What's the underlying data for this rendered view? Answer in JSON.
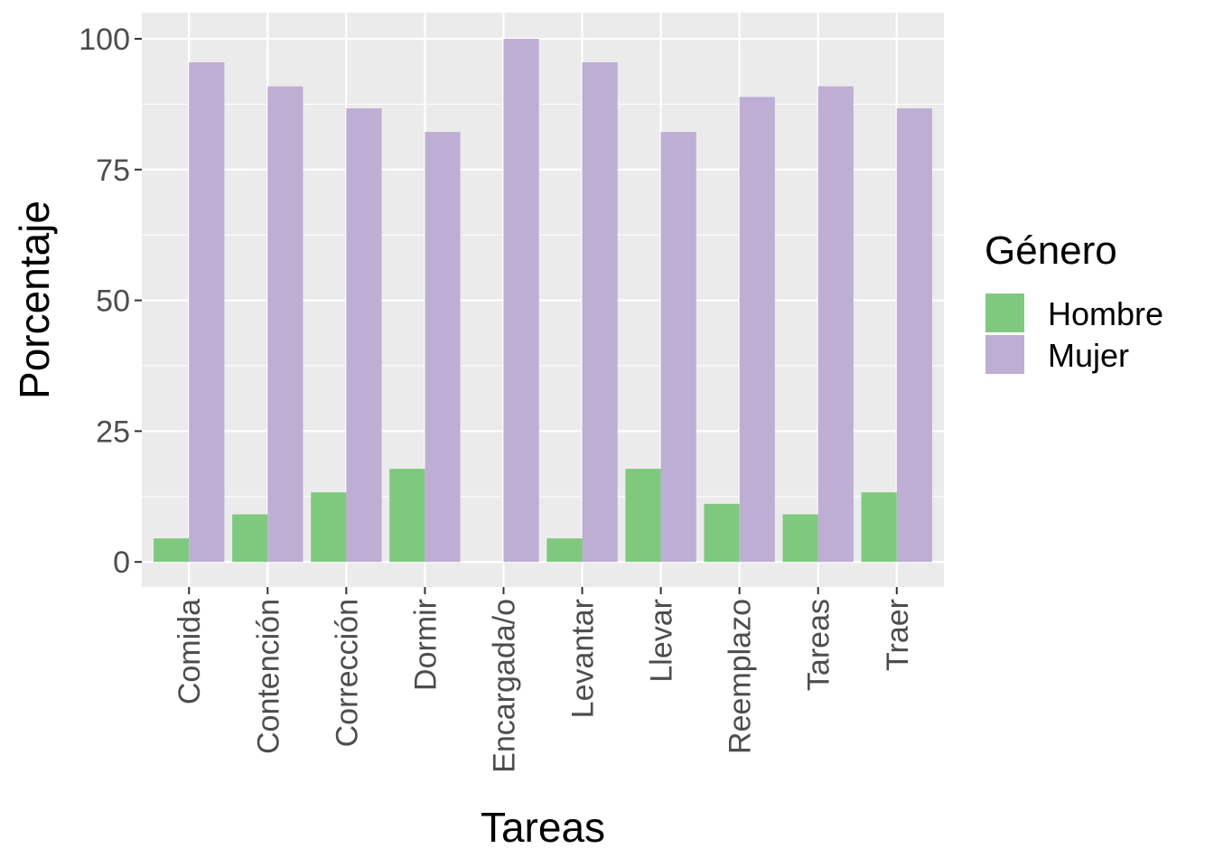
{
  "chart_data": {
    "type": "bar",
    "title": "",
    "xlabel": "Tareas",
    "ylabel": "Porcentaje",
    "categories": [
      "Comida",
      "Contención",
      "Corrección",
      "Dormir",
      "Encargada/o",
      "Levantar",
      "Llevar",
      "Reemplazo",
      "Tareas",
      "Traer"
    ],
    "series": [
      {
        "name": "Hombre",
        "color": "#7fc97f",
        "values": [
          4.5,
          9.1,
          13.3,
          17.8,
          0,
          4.5,
          17.8,
          11.1,
          9.1,
          13.3
        ]
      },
      {
        "name": "Mujer",
        "color": "#beaed4",
        "values": [
          95.5,
          90.9,
          86.7,
          82.2,
          100,
          95.5,
          82.2,
          88.9,
          90.9,
          86.7
        ]
      }
    ],
    "ylim": [
      -4.8,
      105
    ],
    "yticks": [
      0,
      25,
      50,
      75,
      100
    ],
    "grid": true,
    "legend": {
      "title": "Género",
      "position": "right"
    }
  }
}
